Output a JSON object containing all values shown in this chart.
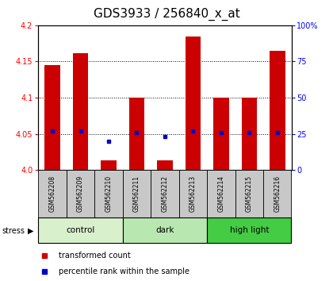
{
  "title": "GDS3933 / 256840_x_at",
  "samples": [
    "GSM562208",
    "GSM562209",
    "GSM562210",
    "GSM562211",
    "GSM562212",
    "GSM562213",
    "GSM562214",
    "GSM562215",
    "GSM562216"
  ],
  "transformed_counts": [
    4.145,
    4.161,
    4.013,
    4.1,
    4.013,
    4.185,
    4.1,
    4.1,
    4.165
  ],
  "percentile_ranks": [
    27,
    27,
    20,
    26,
    23,
    27,
    26,
    26,
    26
  ],
  "groups": [
    {
      "label": "control",
      "indices": [
        0,
        1,
        2
      ],
      "color": "#d8f0cc"
    },
    {
      "label": "dark",
      "indices": [
        3,
        4,
        5
      ],
      "color": "#b8e8b0"
    },
    {
      "label": "high light",
      "indices": [
        6,
        7,
        8
      ],
      "color": "#44cc44"
    }
  ],
  "ylim": [
    4.0,
    4.2
  ],
  "y_ticks_left": [
    4.0,
    4.05,
    4.1,
    4.15,
    4.2
  ],
  "y_ticks_right": [
    0,
    25,
    50,
    75,
    100
  ],
  "bar_color": "#cc0000",
  "dot_color": "#0000cc",
  "bar_width": 0.55,
  "background_color": "#ffffff",
  "title_fontsize": 11,
  "tick_fontsize": 7,
  "sample_bg_color": "#c8c8c8",
  "stress_label": "stress"
}
